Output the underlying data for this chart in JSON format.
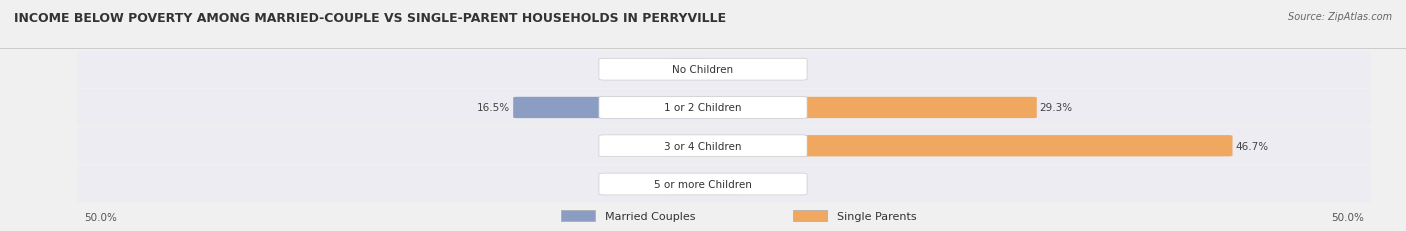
{
  "title": "INCOME BELOW POVERTY AMONG MARRIED-COUPLE VS SINGLE-PARENT HOUSEHOLDS IN PERRYVILLE",
  "source": "Source: ZipAtlas.com",
  "categories": [
    "No Children",
    "1 or 2 Children",
    "3 or 4 Children",
    "5 or more Children"
  ],
  "married_values": [
    0.0,
    16.5,
    0.0,
    0.0
  ],
  "single_values": [
    0.0,
    29.3,
    46.7,
    0.0
  ],
  "married_color": "#8B9DC3",
  "single_color": "#F0A860",
  "married_color_light": "#C5CCE0",
  "single_color_light": "#F7D4A8",
  "axis_max": 50.0,
  "background_color": "#f0f0f0",
  "title_fontsize": 9,
  "label_fontsize": 7.5,
  "tick_fontsize": 7.5,
  "legend_fontsize": 8
}
